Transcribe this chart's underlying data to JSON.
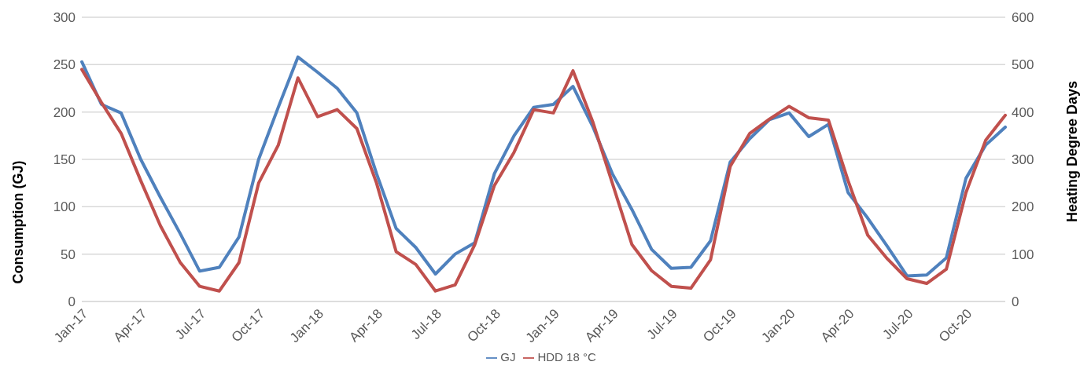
{
  "chart_data": {
    "type": "line",
    "categories": [
      "Jan-17",
      null,
      null,
      "Apr-17",
      null,
      null,
      "Jul-17",
      null,
      null,
      "Oct-17",
      null,
      null,
      "Jan-18",
      null,
      null,
      "Apr-18",
      null,
      null,
      "Jul-18",
      null,
      null,
      "Oct-18",
      null,
      null,
      "Jan-19",
      null,
      null,
      "Apr-19",
      null,
      null,
      "Jul-19",
      null,
      null,
      "Oct-19",
      null,
      null,
      "Jan-20",
      null,
      null,
      "Apr-20",
      null,
      null,
      "Jul-20",
      null,
      null,
      "Oct-20",
      null,
      null
    ],
    "series": [
      {
        "name": "GJ",
        "color": "#4f81bd",
        "values": [
          253,
          208,
          199,
          150,
          110,
          72,
          32,
          36,
          68,
          150,
          205,
          258,
          242,
          225,
          199,
          135,
          77,
          57,
          29,
          50,
          62,
          135,
          175,
          205,
          208,
          227,
          185,
          135,
          97,
          55,
          35,
          36,
          64,
          147,
          172,
          192,
          199,
          174,
          187,
          115,
          88,
          58,
          27,
          28,
          46,
          130,
          165,
          184
        ]
      },
      {
        "name": "HDD 18 °C",
        "color": "#c0504d",
        "axis": "y2",
        "values": [
          490,
          420,
          355,
          255,
          160,
          83,
          32,
          22,
          82,
          250,
          330,
          472,
          390,
          405,
          365,
          250,
          105,
          78,
          22,
          35,
          120,
          245,
          315,
          405,
          398,
          487,
          380,
          250,
          120,
          65,
          32,
          28,
          88,
          285,
          355,
          385,
          412,
          388,
          383,
          255,
          140,
          90,
          48,
          38,
          68,
          230,
          340,
          393
        ]
      }
    ],
    "ylabel": "Consumption (GJ)",
    "y2label": "Heating Degree Days",
    "ylim": [
      0,
      300
    ],
    "yticks": [
      0,
      50,
      100,
      150,
      200,
      250,
      300
    ],
    "y2lim": [
      0,
      600
    ],
    "y2ticks": [
      0,
      100,
      200,
      300,
      400,
      500,
      600
    ],
    "grid": "y",
    "legend": "bottom",
    "marker": "none",
    "line_style": "solid"
  }
}
